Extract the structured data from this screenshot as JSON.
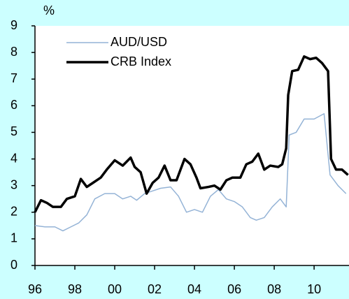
{
  "chart_data": {
    "type": "line",
    "y_label": "%",
    "xlim": [
      1996,
      2011.75
    ],
    "xticks": [
      {
        "value": 1996,
        "label": "96"
      },
      {
        "value": 1998,
        "label": "98"
      },
      {
        "value": 2000,
        "label": "00"
      },
      {
        "value": 2002,
        "label": "02"
      },
      {
        "value": 2004,
        "label": "04"
      },
      {
        "value": 2006,
        "label": "06"
      },
      {
        "value": 2008,
        "label": "08"
      },
      {
        "value": 2010,
        "label": "10"
      }
    ],
    "ylim": [
      0,
      9
    ],
    "yticks": [
      0,
      1,
      2,
      3,
      4,
      5,
      6,
      7,
      8,
      9
    ],
    "legend": "upper left",
    "series": [
      {
        "name": "AUD/USD",
        "color": "#94b3d6",
        "width": 1.5,
        "x": [
          1996.0,
          1996.5,
          1997.0,
          1997.4,
          1997.8,
          1998.2,
          1998.6,
          1999.0,
          1999.5,
          2000.0,
          2000.4,
          2000.8,
          2001.1,
          2001.5,
          2001.9,
          2002.3,
          2002.8,
          2003.2,
          2003.6,
          2004.0,
          2004.4,
          2004.8,
          2005.2,
          2005.6,
          2006.0,
          2006.4,
          2006.8,
          2007.1,
          2007.5,
          2007.9,
          2008.3,
          2008.6,
          2008.75,
          2009.1,
          2009.5,
          2010.0,
          2010.5,
          2010.8,
          2011.2,
          2011.6
        ],
        "values": [
          1.5,
          1.45,
          1.45,
          1.3,
          1.45,
          1.6,
          1.9,
          2.5,
          2.7,
          2.7,
          2.5,
          2.6,
          2.45,
          2.7,
          2.8,
          2.9,
          2.95,
          2.6,
          2.0,
          2.1,
          2.0,
          2.6,
          2.85,
          2.5,
          2.4,
          2.2,
          1.8,
          1.7,
          1.8,
          2.2,
          2.5,
          2.2,
          4.9,
          5.0,
          5.5,
          5.5,
          5.7,
          3.4,
          3.0,
          2.7
        ]
      },
      {
        "name": "CRB Index",
        "color": "#000000",
        "width": 3.5,
        "x": [
          1996.0,
          1996.3,
          1996.6,
          1996.9,
          1997.3,
          1997.6,
          1998.0,
          1998.3,
          1998.6,
          1998.9,
          1999.3,
          1999.6,
          2000.0,
          2000.4,
          2000.8,
          2001.0,
          2001.3,
          2001.6,
          2001.9,
          2002.2,
          2002.5,
          2002.8,
          2003.1,
          2003.5,
          2003.8,
          2004.1,
          2004.3,
          2004.7,
          2005.0,
          2005.3,
          2005.6,
          2005.9,
          2006.3,
          2006.6,
          2006.9,
          2007.2,
          2007.5,
          2007.8,
          2008.2,
          2008.4,
          2008.6,
          2008.7,
          2008.9,
          2009.2,
          2009.5,
          2009.8,
          2010.1,
          2010.4,
          2010.7,
          2010.85,
          2011.1,
          2011.4,
          2011.7
        ],
        "values": [
          2.0,
          2.45,
          2.35,
          2.2,
          2.2,
          2.5,
          2.6,
          3.25,
          2.95,
          3.1,
          3.3,
          3.6,
          3.95,
          3.75,
          4.05,
          3.7,
          3.5,
          2.7,
          3.1,
          3.3,
          3.75,
          3.2,
          3.2,
          4.0,
          3.8,
          3.3,
          2.9,
          2.95,
          3.0,
          2.85,
          3.2,
          3.3,
          3.3,
          3.8,
          3.9,
          4.2,
          3.6,
          3.75,
          3.7,
          3.8,
          4.4,
          6.4,
          7.3,
          7.35,
          7.85,
          7.75,
          7.8,
          7.6,
          7.3,
          4.0,
          3.6,
          3.6,
          3.4
        ]
      }
    ]
  }
}
